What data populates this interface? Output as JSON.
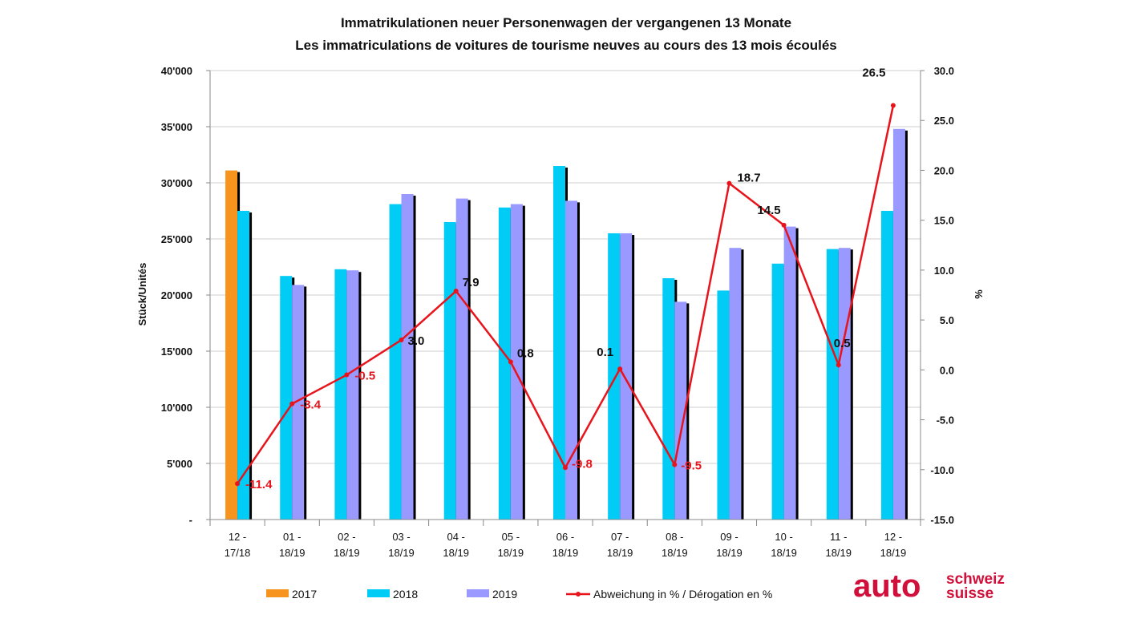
{
  "chart_data": {
    "type": "bar",
    "title": "Immatrikulationen neuer Personenwagen der vergangenen 13 Monate",
    "subtitle": "Les immatriculations de voitures de tourisme neuves au cours des 13 mois écoulés",
    "ylabel": "Stück/Unités",
    "y2label": "%",
    "ylim": [
      0,
      40000
    ],
    "y2lim": [
      -15,
      30
    ],
    "yticks": [
      "-",
      "5'000",
      "10'000",
      "15'000",
      "20'000",
      "25'000",
      "30'000",
      "35'000",
      "40'000"
    ],
    "y2ticks": [
      "-15.0",
      "-10.0",
      "-5.0",
      "0.0",
      "5.0",
      "10.0",
      "15.0",
      "20.0",
      "25.0",
      "30.0"
    ],
    "categories": [
      [
        "12 -",
        "17/18"
      ],
      [
        "01 -",
        "18/19"
      ],
      [
        "02 -",
        "18/19"
      ],
      [
        "03 -",
        "18/19"
      ],
      [
        "04 -",
        "18/19"
      ],
      [
        "05 -",
        "18/19"
      ],
      [
        "06 -",
        "18/19"
      ],
      [
        "07 -",
        "18/19"
      ],
      [
        "08 -",
        "18/19"
      ],
      [
        "09 -",
        "18/19"
      ],
      [
        "10 -",
        "18/19"
      ],
      [
        "11 -",
        "18/19"
      ],
      [
        "12 -",
        "18/19"
      ]
    ],
    "grid": true,
    "legend_position": "bottom",
    "series": [
      {
        "name": "2017",
        "color": "#f7941d",
        "type": "bar",
        "values": [
          31100,
          null,
          null,
          null,
          null,
          null,
          null,
          null,
          null,
          null,
          null,
          null,
          null
        ]
      },
      {
        "name": "2018",
        "color": "#00ccf5",
        "type": "bar",
        "values": [
          27500,
          21700,
          22300,
          28100,
          26500,
          27800,
          31500,
          25500,
          21500,
          20400,
          22800,
          24100,
          27500
        ]
      },
      {
        "name": "2019",
        "color": "#9999ff",
        "type": "bar",
        "values": [
          null,
          20900,
          22200,
          29000,
          28600,
          28100,
          28400,
          25500,
          19400,
          24200,
          26100,
          24200,
          34800
        ]
      },
      {
        "name": "Abweichung in % / Dérogation en %",
        "color": "#e8141c",
        "type": "line",
        "axis": "right",
        "values": [
          -11.4,
          -3.4,
          -0.5,
          3.0,
          7.9,
          0.8,
          -9.8,
          0.1,
          -9.5,
          18.7,
          14.5,
          0.5,
          26.5
        ],
        "labels": [
          "-11.4",
          "-3.4",
          "-0.5",
          "3.0",
          "7.9",
          "0.8",
          "-9.8",
          "0.1",
          "-9.5",
          "18.7",
          "14.5",
          "0.5",
          "26.5"
        ]
      }
    ]
  },
  "logo": {
    "main": "auto",
    "line1": "schweiz",
    "line2": "suisse"
  }
}
